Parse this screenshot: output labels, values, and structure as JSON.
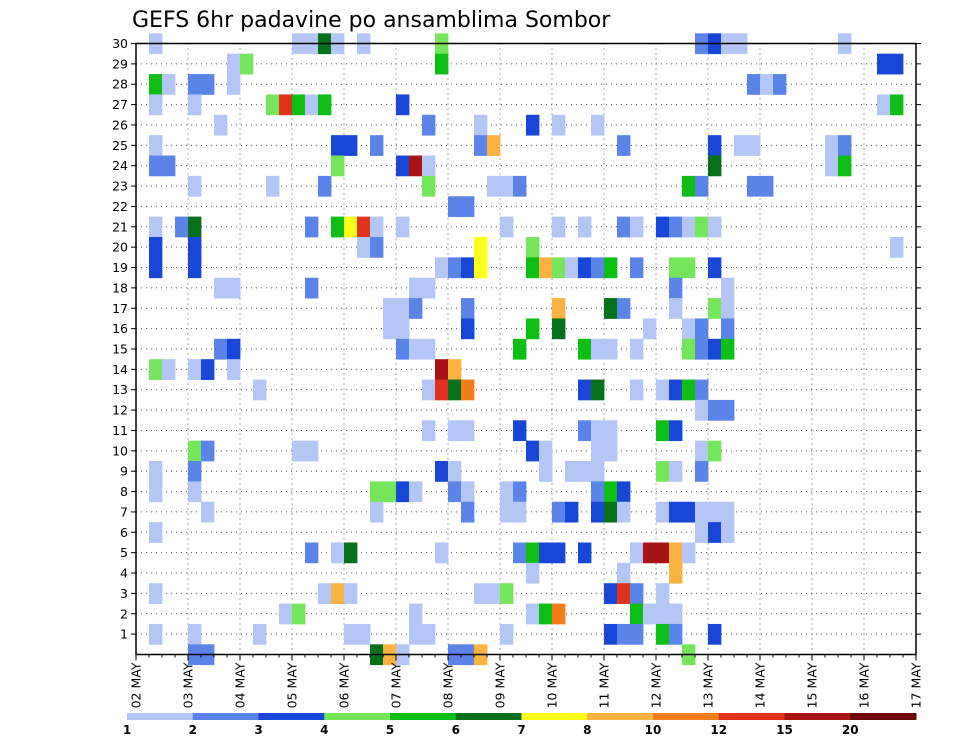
{
  "chart_data": {
    "type": "heatmap",
    "title": "GEFS 6hr padavine po ansamblima Sombor",
    "xlabel": "",
    "ylabel": "",
    "x_ticks": [
      "02 MAY",
      "03 MAY",
      "04 MAY",
      "05 MAY",
      "06 MAY",
      "07 MAY",
      "08 MAY",
      "09 MAY",
      "10 MAY",
      "11 MAY",
      "12 MAY",
      "13 MAY",
      "14 MAY",
      "15 MAY",
      "16 MAY",
      "17 MAY"
    ],
    "y_ticks": [
      "1",
      "2",
      "3",
      "4",
      "5",
      "6",
      "7",
      "8",
      "9",
      "10",
      "11",
      "12",
      "13",
      "14",
      "15",
      "16",
      "17",
      "18",
      "19",
      "20",
      "21",
      "22",
      "23",
      "24",
      "25",
      "26",
      "27",
      "28",
      "29",
      "30"
    ],
    "xlim": [
      0,
      60
    ],
    "ylim": [
      0,
      30
    ],
    "grid": true,
    "legend_position": "bottom",
    "levels": [
      "1",
      "2",
      "3",
      "4",
      "5",
      "6",
      "7",
      "8",
      "10",
      "12",
      "15",
      "20"
    ],
    "colors": [
      "#b3c6f5",
      "#5b84e9",
      "#1846d6",
      "#75e65b",
      "#0dbf14",
      "#06711a",
      "#ffff1a",
      "#fbb240",
      "#f27d1a",
      "#e0321a",
      "#a71414",
      "#6e0808"
    ],
    "cells": [
      [
        1,
        30,
        0
      ],
      [
        12,
        30,
        0
      ],
      [
        13,
        30,
        0
      ],
      [
        14,
        30,
        5
      ],
      [
        15,
        30,
        0
      ],
      [
        17,
        30,
        0
      ],
      [
        23,
        30,
        3
      ],
      [
        43,
        30,
        1
      ],
      [
        44,
        30,
        2
      ],
      [
        45,
        30,
        0
      ],
      [
        46,
        30,
        0
      ],
      [
        54,
        30,
        0
      ],
      [
        7,
        29,
        0
      ],
      [
        8,
        29,
        3
      ],
      [
        23,
        29,
        4
      ],
      [
        57,
        29,
        2
      ],
      [
        58,
        29,
        2
      ],
      [
        1,
        28,
        4
      ],
      [
        2,
        28,
        0
      ],
      [
        4,
        28,
        1
      ],
      [
        5,
        28,
        1
      ],
      [
        7,
        28,
        0
      ],
      [
        47,
        28,
        1
      ],
      [
        48,
        28,
        0
      ],
      [
        49,
        28,
        1
      ],
      [
        1,
        27,
        0
      ],
      [
        4,
        27,
        0
      ],
      [
        10,
        27,
        3
      ],
      [
        11,
        27,
        9
      ],
      [
        12,
        27,
        4
      ],
      [
        13,
        27,
        0
      ],
      [
        14,
        27,
        4
      ],
      [
        20,
        27,
        2
      ],
      [
        57,
        27,
        0
      ],
      [
        58,
        27,
        4
      ],
      [
        6,
        26,
        0
      ],
      [
        22,
        26,
        1
      ],
      [
        26,
        26,
        0
      ],
      [
        30,
        26,
        2
      ],
      [
        32,
        26,
        0
      ],
      [
        35,
        26,
        0
      ],
      [
        1,
        25,
        0
      ],
      [
        15,
        25,
        2
      ],
      [
        16,
        25,
        2
      ],
      [
        18,
        25,
        1
      ],
      [
        26,
        25,
        1
      ],
      [
        27,
        25,
        7
      ],
      [
        37,
        25,
        1
      ],
      [
        44,
        25,
        2
      ],
      [
        46,
        25,
        0
      ],
      [
        47,
        25,
        0
      ],
      [
        53,
        25,
        0
      ],
      [
        54,
        25,
        1
      ],
      [
        1,
        24,
        1
      ],
      [
        2,
        24,
        1
      ],
      [
        15,
        24,
        3
      ],
      [
        20,
        24,
        2
      ],
      [
        21,
        24,
        10
      ],
      [
        22,
        24,
        0
      ],
      [
        44,
        24,
        5
      ],
      [
        53,
        24,
        0
      ],
      [
        54,
        24,
        4
      ],
      [
        4,
        23,
        0
      ],
      [
        10,
        23,
        0
      ],
      [
        14,
        23,
        1
      ],
      [
        22,
        23,
        3
      ],
      [
        27,
        23,
        0
      ],
      [
        28,
        23,
        0
      ],
      [
        29,
        23,
        1
      ],
      [
        42,
        23,
        4
      ],
      [
        43,
        23,
        1
      ],
      [
        47,
        23,
        1
      ],
      [
        48,
        23,
        1
      ],
      [
        24,
        22,
        1
      ],
      [
        25,
        22,
        1
      ],
      [
        1,
        21,
        0
      ],
      [
        3,
        21,
        1
      ],
      [
        4,
        21,
        5
      ],
      [
        13,
        21,
        1
      ],
      [
        15,
        21,
        4
      ],
      [
        16,
        21,
        6
      ],
      [
        17,
        21,
        9
      ],
      [
        18,
        21,
        0
      ],
      [
        20,
        21,
        0
      ],
      [
        28,
        21,
        0
      ],
      [
        32,
        21,
        0
      ],
      [
        34,
        21,
        0
      ],
      [
        37,
        21,
        1
      ],
      [
        38,
        21,
        0
      ],
      [
        40,
        21,
        2
      ],
      [
        41,
        21,
        1
      ],
      [
        42,
        21,
        0
      ],
      [
        43,
        21,
        3
      ],
      [
        44,
        21,
        0
      ],
      [
        1,
        20,
        2
      ],
      [
        4,
        20,
        2
      ],
      [
        17,
        20,
        0
      ],
      [
        18,
        20,
        1
      ],
      [
        26,
        20,
        6
      ],
      [
        30,
        20,
        3
      ],
      [
        58,
        20,
        0
      ],
      [
        1,
        19,
        2
      ],
      [
        4,
        19,
        2
      ],
      [
        23,
        19,
        0
      ],
      [
        24,
        19,
        1
      ],
      [
        25,
        19,
        2
      ],
      [
        26,
        19,
        6
      ],
      [
        30,
        19,
        4
      ],
      [
        31,
        19,
        7
      ],
      [
        32,
        19,
        3
      ],
      [
        33,
        19,
        0
      ],
      [
        34,
        19,
        2
      ],
      [
        35,
        19,
        1
      ],
      [
        36,
        19,
        4
      ],
      [
        38,
        19,
        1
      ],
      [
        41,
        19,
        3
      ],
      [
        42,
        19,
        3
      ],
      [
        44,
        19,
        2
      ],
      [
        6,
        18,
        0
      ],
      [
        7,
        18,
        0
      ],
      [
        13,
        18,
        1
      ],
      [
        21,
        18,
        0
      ],
      [
        22,
        18,
        0
      ],
      [
        41,
        18,
        1
      ],
      [
        45,
        18,
        0
      ],
      [
        19,
        17,
        0
      ],
      [
        20,
        17,
        0
      ],
      [
        21,
        17,
        1
      ],
      [
        25,
        17,
        1
      ],
      [
        32,
        17,
        7
      ],
      [
        36,
        17,
        5
      ],
      [
        37,
        17,
        1
      ],
      [
        41,
        17,
        0
      ],
      [
        44,
        17,
        3
      ],
      [
        45,
        17,
        0
      ],
      [
        19,
        16,
        0
      ],
      [
        20,
        16,
        0
      ],
      [
        25,
        16,
        2
      ],
      [
        30,
        16,
        4
      ],
      [
        32,
        16,
        5
      ],
      [
        39,
        16,
        0
      ],
      [
        42,
        16,
        0
      ],
      [
        43,
        16,
        1
      ],
      [
        45,
        16,
        1
      ],
      [
        6,
        15,
        1
      ],
      [
        7,
        15,
        2
      ],
      [
        20,
        15,
        1
      ],
      [
        21,
        15,
        0
      ],
      [
        22,
        15,
        0
      ],
      [
        29,
        15,
        4
      ],
      [
        34,
        15,
        4
      ],
      [
        35,
        15,
        0
      ],
      [
        36,
        15,
        0
      ],
      [
        38,
        15,
        0
      ],
      [
        42,
        15,
        3
      ],
      [
        43,
        15,
        1
      ],
      [
        44,
        15,
        2
      ],
      [
        45,
        15,
        4
      ],
      [
        1,
        14,
        3
      ],
      [
        2,
        14,
        0
      ],
      [
        4,
        14,
        0
      ],
      [
        5,
        14,
        2
      ],
      [
        7,
        14,
        0
      ],
      [
        23,
        14,
        10
      ],
      [
        24,
        14,
        7
      ],
      [
        9,
        13,
        0
      ],
      [
        22,
        13,
        0
      ],
      [
        23,
        13,
        9
      ],
      [
        24,
        13,
        5
      ],
      [
        25,
        13,
        8
      ],
      [
        34,
        13,
        2
      ],
      [
        35,
        13,
        5
      ],
      [
        38,
        13,
        0
      ],
      [
        40,
        13,
        0
      ],
      [
        41,
        13,
        2
      ],
      [
        42,
        13,
        4
      ],
      [
        43,
        13,
        1
      ],
      [
        43,
        12,
        0
      ],
      [
        44,
        12,
        1
      ],
      [
        45,
        12,
        1
      ],
      [
        22,
        11,
        0
      ],
      [
        24,
        11,
        0
      ],
      [
        25,
        11,
        0
      ],
      [
        29,
        11,
        2
      ],
      [
        34,
        11,
        1
      ],
      [
        35,
        11,
        0
      ],
      [
        36,
        11,
        0
      ],
      [
        40,
        11,
        4
      ],
      [
        41,
        11,
        2
      ],
      [
        4,
        10,
        3
      ],
      [
        5,
        10,
        1
      ],
      [
        12,
        10,
        0
      ],
      [
        13,
        10,
        0
      ],
      [
        30,
        10,
        2
      ],
      [
        31,
        10,
        0
      ],
      [
        35,
        10,
        0
      ],
      [
        36,
        10,
        0
      ],
      [
        43,
        10,
        0
      ],
      [
        44,
        10,
        3
      ],
      [
        1,
        9,
        0
      ],
      [
        4,
        9,
        1
      ],
      [
        23,
        9,
        2
      ],
      [
        24,
        9,
        0
      ],
      [
        31,
        9,
        0
      ],
      [
        33,
        9,
        0
      ],
      [
        34,
        9,
        0
      ],
      [
        35,
        9,
        0
      ],
      [
        40,
        9,
        3
      ],
      [
        41,
        9,
        0
      ],
      [
        43,
        9,
        1
      ],
      [
        1,
        8,
        0
      ],
      [
        4,
        8,
        0
      ],
      [
        18,
        8,
        3
      ],
      [
        19,
        8,
        3
      ],
      [
        20,
        8,
        2
      ],
      [
        21,
        8,
        0
      ],
      [
        24,
        8,
        1
      ],
      [
        25,
        8,
        0
      ],
      [
        28,
        8,
        0
      ],
      [
        29,
        8,
        1
      ],
      [
        35,
        8,
        1
      ],
      [
        36,
        8,
        4
      ],
      [
        37,
        8,
        2
      ],
      [
        5,
        7,
        0
      ],
      [
        18,
        7,
        0
      ],
      [
        25,
        7,
        1
      ],
      [
        28,
        7,
        0
      ],
      [
        29,
        7,
        0
      ],
      [
        32,
        7,
        1
      ],
      [
        33,
        7,
        2
      ],
      [
        35,
        7,
        2
      ],
      [
        36,
        7,
        5
      ],
      [
        37,
        7,
        0
      ],
      [
        40,
        7,
        0
      ],
      [
        41,
        7,
        2
      ],
      [
        42,
        7,
        2
      ],
      [
        43,
        7,
        0
      ],
      [
        44,
        7,
        0
      ],
      [
        45,
        7,
        0
      ],
      [
        1,
        6,
        0
      ],
      [
        43,
        6,
        0
      ],
      [
        44,
        6,
        2
      ],
      [
        45,
        6,
        0
      ],
      [
        13,
        5,
        1
      ],
      [
        15,
        5,
        0
      ],
      [
        16,
        5,
        5
      ],
      [
        23,
        5,
        0
      ],
      [
        29,
        5,
        1
      ],
      [
        30,
        5,
        4
      ],
      [
        31,
        5,
        2
      ],
      [
        32,
        5,
        2
      ],
      [
        34,
        5,
        2
      ],
      [
        38,
        5,
        0
      ],
      [
        39,
        5,
        10
      ],
      [
        40,
        5,
        10
      ],
      [
        41,
        5,
        7
      ],
      [
        42,
        5,
        0
      ],
      [
        30,
        4,
        0
      ],
      [
        37,
        4,
        0
      ],
      [
        41,
        4,
        7
      ],
      [
        1,
        3,
        0
      ],
      [
        14,
        3,
        0
      ],
      [
        15,
        3,
        7
      ],
      [
        16,
        3,
        0
      ],
      [
        26,
        3,
        0
      ],
      [
        27,
        3,
        0
      ],
      [
        28,
        3,
        3
      ],
      [
        36,
        3,
        2
      ],
      [
        37,
        3,
        9
      ],
      [
        38,
        3,
        1
      ],
      [
        40,
        3,
        0
      ],
      [
        11,
        2,
        0
      ],
      [
        12,
        2,
        3
      ],
      [
        21,
        2,
        0
      ],
      [
        30,
        2,
        0
      ],
      [
        31,
        2,
        4
      ],
      [
        32,
        2,
        8
      ],
      [
        38,
        2,
        4
      ],
      [
        39,
        2,
        0
      ],
      [
        40,
        2,
        0
      ],
      [
        41,
        2,
        0
      ],
      [
        1,
        1,
        0
      ],
      [
        4,
        1,
        0
      ],
      [
        9,
        1,
        0
      ],
      [
        16,
        1,
        0
      ],
      [
        17,
        1,
        0
      ],
      [
        21,
        1,
        0
      ],
      [
        22,
        1,
        0
      ],
      [
        28,
        1,
        0
      ],
      [
        36,
        1,
        2
      ],
      [
        37,
        1,
        1
      ],
      [
        38,
        1,
        1
      ],
      [
        40,
        1,
        4
      ],
      [
        41,
        1,
        1
      ],
      [
        44,
        1,
        2
      ],
      [
        4,
        0,
        1
      ],
      [
        5,
        0,
        1
      ],
      [
        18,
        0,
        5
      ],
      [
        19,
        0,
        7
      ],
      [
        20,
        0,
        0
      ],
      [
        24,
        0,
        1
      ],
      [
        25,
        0,
        1
      ],
      [
        26,
        0,
        7
      ],
      [
        42,
        0,
        3
      ]
    ]
  }
}
